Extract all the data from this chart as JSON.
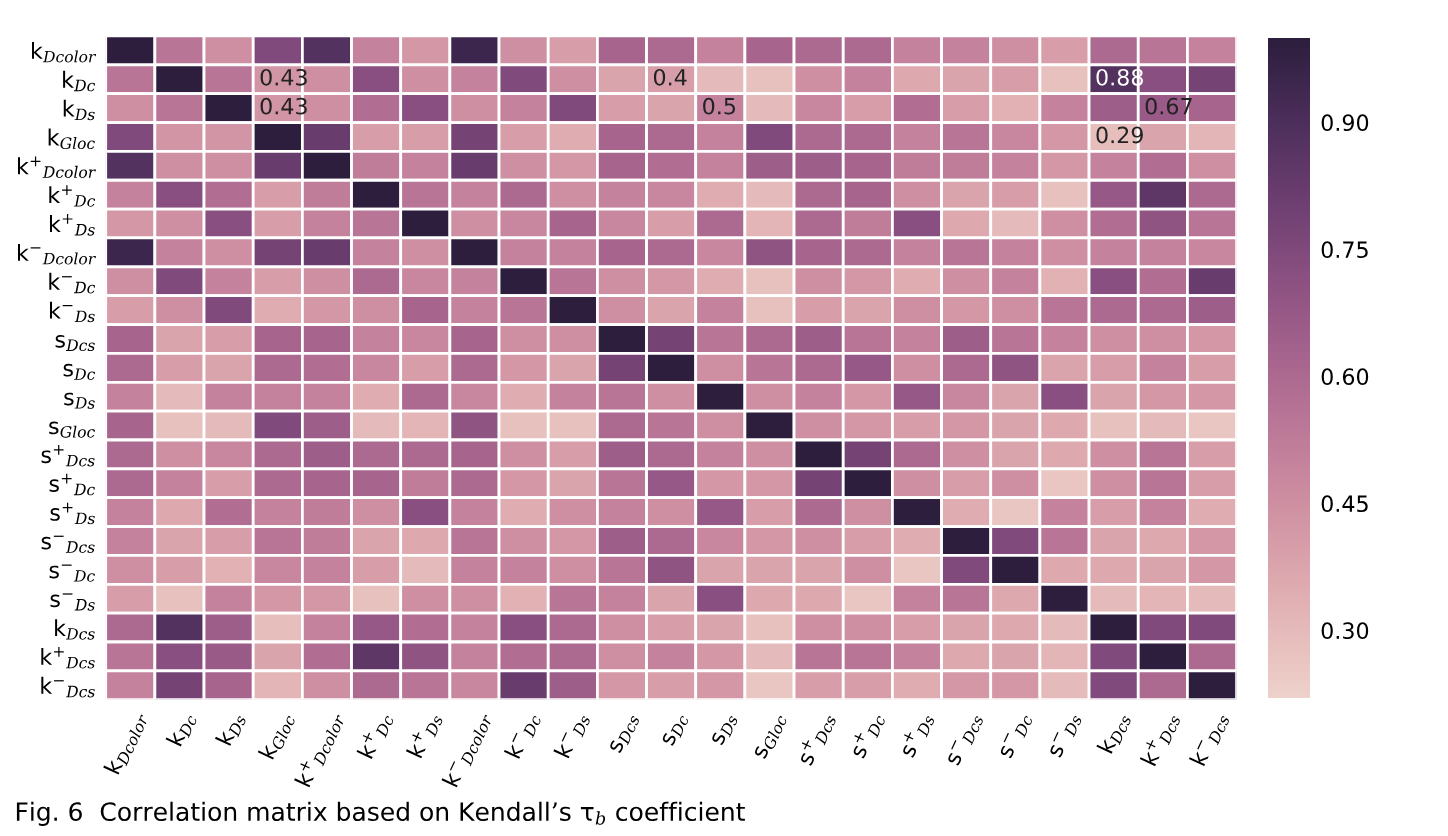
{
  "chart_data": {
    "type": "heatmap",
    "categories": [
      "k$_{Dcolor}$",
      "k$_{Dc}$",
      "k$_{Ds}$",
      "k$_{Gloc}$",
      "k$^{+}$$_{Dcolor}$",
      "k$^{+}$$_{Dc}$",
      "k$^{+}$$_{Ds}$",
      "k$^{−}$$_{Dcolor}$",
      "k$^{−}$$_{Dc}$",
      "k$^{−}$$_{Ds}$",
      "s$_{Dcs}$",
      "s$_{Dc}$",
      "s$_{Ds}$",
      "s$_{Gloc}$",
      "s$^{+}$$_{Dcs}$",
      "s$^{+}$$_{Dc}$",
      "s$^{+}$$_{Ds}$",
      "s$^{−}$$_{Dcs}$",
      "s$^{−}$$_{Dc}$",
      "s$^{−}$$_{Ds}$",
      "k$_{Dcs}$",
      "k$^{+}$$_{Dcs}$",
      "k$^{−}$$_{Dcs}$"
    ],
    "y_categories": [
      "k$_{Dcolor}$",
      "k$_{Dc}$",
      "k$_{Ds}$",
      "k$_{Gloc}$",
      "k$^{+}$$_{Dcolor}$",
      "k$^{+}$$_{Dc}$",
      "k$^{+}$$_{Ds}$",
      "k$^{−}$$_{Dcolor}$",
      "k$^{−}$$_{Dc}$",
      "k$^{−}$$_{Ds}$",
      "s$_{Dcs}$",
      "s$_{Dc}$",
      "s$_{Ds}$",
      "s$_{Gloc}$",
      "s$^{+}$$_{Dcs}$",
      "s$^{+}$$_{Dc}$",
      "s$^{+}$$_{Ds}$",
      "s$^{−}$$_{Dcs}$",
      "s$^{−}$$_{Dc}$",
      "s$^{−}$$_{Ds}$",
      "k$_{Dcs}$",
      "k$^{+}$$_{Dcs}$",
      "k$^{−}$$_{Dcs}$"
    ],
    "cells": [
      [
        1.0,
        0.55,
        0.45,
        0.75,
        0.88,
        0.5,
        0.42,
        0.95,
        0.45,
        0.4,
        0.62,
        0.6,
        0.5,
        0.62,
        0.6,
        0.6,
        0.5,
        0.5,
        0.45,
        0.4,
        0.6,
        0.55,
        0.5
      ],
      [
        0.55,
        1.0,
        0.55,
        0.43,
        0.45,
        0.72,
        0.45,
        0.5,
        0.75,
        0.45,
        0.38,
        0.4,
        0.3,
        0.28,
        0.45,
        0.5,
        0.36,
        0.38,
        0.4,
        0.28,
        0.88,
        0.72,
        0.78
      ],
      [
        0.45,
        0.55,
        1.0,
        0.43,
        0.45,
        0.58,
        0.72,
        0.45,
        0.5,
        0.75,
        0.4,
        0.38,
        0.5,
        0.3,
        0.48,
        0.4,
        0.58,
        0.4,
        0.33,
        0.5,
        0.65,
        0.67,
        0.62
      ],
      [
        0.75,
        0.43,
        0.43,
        1.0,
        0.82,
        0.4,
        0.4,
        0.78,
        0.4,
        0.35,
        0.62,
        0.6,
        0.5,
        0.75,
        0.6,
        0.6,
        0.5,
        0.55,
        0.48,
        0.42,
        0.29,
        0.38,
        0.32
      ],
      [
        0.88,
        0.45,
        0.45,
        0.82,
        1.0,
        0.52,
        0.5,
        0.82,
        0.45,
        0.42,
        0.62,
        0.58,
        0.5,
        0.65,
        0.65,
        0.62,
        0.52,
        0.52,
        0.5,
        0.42,
        0.5,
        0.58,
        0.45
      ],
      [
        0.5,
        0.72,
        0.58,
        0.4,
        0.52,
        1.0,
        0.55,
        0.5,
        0.6,
        0.45,
        0.5,
        0.48,
        0.35,
        0.3,
        0.6,
        0.62,
        0.45,
        0.38,
        0.4,
        0.28,
        0.68,
        0.85,
        0.6
      ],
      [
        0.42,
        0.45,
        0.72,
        0.4,
        0.5,
        0.55,
        1.0,
        0.45,
        0.48,
        0.62,
        0.48,
        0.4,
        0.6,
        0.32,
        0.6,
        0.52,
        0.72,
        0.36,
        0.3,
        0.45,
        0.58,
        0.7,
        0.55
      ],
      [
        0.95,
        0.5,
        0.45,
        0.78,
        0.82,
        0.5,
        0.45,
        1.0,
        0.5,
        0.5,
        0.62,
        0.6,
        0.48,
        0.7,
        0.62,
        0.6,
        0.5,
        0.55,
        0.5,
        0.45,
        0.5,
        0.5,
        0.48
      ],
      [
        0.45,
        0.75,
        0.5,
        0.4,
        0.45,
        0.6,
        0.48,
        0.5,
        1.0,
        0.55,
        0.45,
        0.42,
        0.35,
        0.28,
        0.45,
        0.42,
        0.35,
        0.45,
        0.5,
        0.33,
        0.72,
        0.58,
        0.82
      ],
      [
        0.4,
        0.45,
        0.75,
        0.35,
        0.42,
        0.45,
        0.62,
        0.5,
        0.55,
        1.0,
        0.45,
        0.38,
        0.5,
        0.28,
        0.4,
        0.38,
        0.45,
        0.42,
        0.45,
        0.55,
        0.6,
        0.6,
        0.65
      ],
      [
        0.62,
        0.38,
        0.4,
        0.62,
        0.62,
        0.5,
        0.48,
        0.62,
        0.45,
        0.45,
        1.0,
        0.78,
        0.55,
        0.6,
        0.65,
        0.55,
        0.5,
        0.65,
        0.55,
        0.5,
        0.45,
        0.45,
        0.42
      ],
      [
        0.6,
        0.4,
        0.38,
        0.6,
        0.58,
        0.48,
        0.4,
        0.6,
        0.42,
        0.38,
        0.78,
        1.0,
        0.45,
        0.55,
        0.6,
        0.68,
        0.45,
        0.6,
        0.7,
        0.38,
        0.4,
        0.5,
        0.4
      ],
      [
        0.5,
        0.3,
        0.5,
        0.5,
        0.5,
        0.35,
        0.6,
        0.48,
        0.35,
        0.5,
        0.55,
        0.45,
        1.0,
        0.45,
        0.5,
        0.42,
        0.68,
        0.48,
        0.38,
        0.72,
        0.38,
        0.42,
        0.42
      ],
      [
        0.62,
        0.28,
        0.3,
        0.75,
        0.65,
        0.3,
        0.32,
        0.7,
        0.28,
        0.28,
        0.6,
        0.55,
        0.45,
        1.0,
        0.45,
        0.42,
        0.4,
        0.42,
        0.38,
        0.36,
        0.28,
        0.3,
        0.26
      ],
      [
        0.6,
        0.45,
        0.48,
        0.6,
        0.65,
        0.6,
        0.6,
        0.62,
        0.45,
        0.4,
        0.65,
        0.6,
        0.5,
        0.45,
        1.0,
        0.78,
        0.6,
        0.45,
        0.38,
        0.36,
        0.45,
        0.55,
        0.4
      ],
      [
        0.6,
        0.5,
        0.4,
        0.6,
        0.62,
        0.62,
        0.52,
        0.6,
        0.42,
        0.38,
        0.55,
        0.68,
        0.42,
        0.42,
        0.78,
        1.0,
        0.45,
        0.4,
        0.45,
        0.26,
        0.45,
        0.55,
        0.4
      ],
      [
        0.5,
        0.36,
        0.58,
        0.5,
        0.52,
        0.45,
        0.72,
        0.5,
        0.35,
        0.45,
        0.5,
        0.45,
        0.68,
        0.4,
        0.6,
        0.45,
        1.0,
        0.35,
        0.26,
        0.5,
        0.4,
        0.5,
        0.35
      ],
      [
        0.5,
        0.38,
        0.4,
        0.55,
        0.52,
        0.38,
        0.36,
        0.55,
        0.45,
        0.42,
        0.65,
        0.6,
        0.48,
        0.42,
        0.45,
        0.4,
        0.35,
        1.0,
        0.75,
        0.55,
        0.38,
        0.36,
        0.42
      ],
      [
        0.45,
        0.4,
        0.33,
        0.48,
        0.5,
        0.4,
        0.3,
        0.5,
        0.5,
        0.45,
        0.55,
        0.7,
        0.38,
        0.38,
        0.38,
        0.45,
        0.26,
        0.75,
        1.0,
        0.36,
        0.36,
        0.38,
        0.42
      ],
      [
        0.4,
        0.28,
        0.5,
        0.42,
        0.42,
        0.28,
        0.45,
        0.45,
        0.33,
        0.55,
        0.5,
        0.38,
        0.72,
        0.36,
        0.36,
        0.26,
        0.5,
        0.55,
        0.36,
        1.0,
        0.3,
        0.32,
        0.3
      ],
      [
        0.6,
        0.88,
        0.65,
        0.29,
        0.5,
        0.68,
        0.58,
        0.5,
        0.72,
        0.6,
        0.45,
        0.4,
        0.38,
        0.28,
        0.45,
        0.45,
        0.4,
        0.38,
        0.36,
        0.3,
        1.0,
        0.75,
        0.75
      ],
      [
        0.55,
        0.72,
        0.67,
        0.38,
        0.58,
        0.85,
        0.7,
        0.5,
        0.58,
        0.6,
        0.45,
        0.5,
        0.42,
        0.3,
        0.55,
        0.55,
        0.5,
        0.36,
        0.38,
        0.32,
        0.75,
        1.0,
        0.6
      ],
      [
        0.5,
        0.78,
        0.62,
        0.32,
        0.45,
        0.6,
        0.55,
        0.48,
        0.82,
        0.65,
        0.42,
        0.4,
        0.42,
        0.26,
        0.4,
        0.4,
        0.35,
        0.42,
        0.42,
        0.3,
        0.75,
        0.6,
        1.0
      ]
    ],
    "cell_labels": [
      [
        null,
        null,
        null,
        null,
        null,
        null,
        null,
        null,
        null,
        null,
        null,
        null,
        null,
        null,
        null,
        null,
        null,
        null,
        null,
        null,
        null,
        null,
        null
      ],
      [
        null,
        null,
        null,
        "0.43",
        null,
        null,
        null,
        null,
        null,
        null,
        null,
        "0.4",
        null,
        null,
        null,
        null,
        null,
        null,
        null,
        null,
        "0.88",
        null,
        null
      ],
      [
        null,
        null,
        null,
        "0.43",
        null,
        null,
        null,
        null,
        null,
        null,
        null,
        null,
        "0.5",
        null,
        null,
        null,
        null,
        null,
        null,
        null,
        null,
        "0.67",
        null
      ],
      [
        null,
        null,
        null,
        null,
        null,
        null,
        null,
        null,
        null,
        null,
        null,
        null,
        null,
        null,
        null,
        null,
        null,
        null,
        null,
        null,
        "0.29",
        null,
        null
      ],
      [
        null,
        null,
        null,
        null,
        null,
        null,
        null,
        null,
        null,
        null,
        null,
        null,
        null,
        null,
        null,
        null,
        null,
        null,
        null,
        null,
        null,
        null,
        null
      ],
      [
        null,
        null,
        null,
        null,
        null,
        null,
        null,
        null,
        null,
        null,
        null,
        null,
        null,
        null,
        null,
        null,
        null,
        null,
        null,
        null,
        null,
        null,
        null
      ],
      [
        null,
        null,
        null,
        null,
        null,
        null,
        null,
        null,
        null,
        null,
        null,
        null,
        null,
        null,
        null,
        null,
        null,
        null,
        null,
        null,
        null,
        null,
        null
      ],
      [
        null,
        null,
        null,
        null,
        null,
        null,
        null,
        null,
        null,
        null,
        null,
        null,
        null,
        null,
        null,
        null,
        null,
        null,
        null,
        null,
        null,
        null,
        null
      ],
      [
        null,
        null,
        null,
        null,
        null,
        null,
        null,
        null,
        null,
        null,
        null,
        null,
        null,
        null,
        null,
        null,
        null,
        null,
        null,
        null,
        null,
        null,
        null
      ],
      [
        null,
        null,
        null,
        null,
        null,
        null,
        null,
        null,
        null,
        null,
        null,
        null,
        null,
        null,
        null,
        null,
        null,
        null,
        null,
        null,
        null,
        null,
        null
      ],
      [
        null,
        null,
        null,
        null,
        null,
        null,
        null,
        null,
        null,
        null,
        null,
        null,
        null,
        null,
        null,
        null,
        null,
        null,
        null,
        null,
        null,
        null,
        null
      ],
      [
        null,
        null,
        null,
        null,
        null,
        null,
        null,
        null,
        null,
        null,
        null,
        null,
        null,
        null,
        null,
        null,
        null,
        null,
        null,
        null,
        null,
        null,
        null
      ],
      [
        null,
        null,
        null,
        null,
        null,
        null,
        null,
        null,
        null,
        null,
        null,
        null,
        null,
        null,
        null,
        null,
        null,
        null,
        null,
        null,
        null,
        null,
        null
      ],
      [
        null,
        null,
        null,
        null,
        null,
        null,
        null,
        null,
        null,
        null,
        null,
        null,
        null,
        null,
        null,
        null,
        null,
        null,
        null,
        null,
        null,
        null,
        null
      ],
      [
        null,
        null,
        null,
        null,
        null,
        null,
        null,
        null,
        null,
        null,
        null,
        null,
        null,
        null,
        null,
        null,
        null,
        null,
        null,
        null,
        null,
        null,
        null
      ],
      [
        null,
        null,
        null,
        null,
        null,
        null,
        null,
        null,
        null,
        null,
        null,
        null,
        null,
        null,
        null,
        null,
        null,
        null,
        null,
        null,
        null,
        null,
        null
      ],
      [
        null,
        null,
        null,
        null,
        null,
        null,
        null,
        null,
        null,
        null,
        null,
        null,
        null,
        null,
        null,
        null,
        null,
        null,
        null,
        null,
        null,
        null,
        null
      ],
      [
        null,
        null,
        null,
        null,
        null,
        null,
        null,
        null,
        null,
        null,
        null,
        null,
        null,
        null,
        null,
        null,
        null,
        null,
        null,
        null,
        null,
        null,
        null
      ],
      [
        null,
        null,
        null,
        null,
        null,
        null,
        null,
        null,
        null,
        null,
        null,
        null,
        null,
        null,
        null,
        null,
        null,
        null,
        null,
        null,
        null,
        null,
        null
      ],
      [
        null,
        null,
        null,
        null,
        null,
        null,
        null,
        null,
        null,
        null,
        null,
        null,
        null,
        null,
        null,
        null,
        null,
        null,
        null,
        null,
        null,
        null,
        null
      ],
      [
        null,
        null,
        null,
        null,
        null,
        null,
        null,
        null,
        null,
        null,
        null,
        null,
        null,
        null,
        null,
        null,
        null,
        null,
        null,
        null,
        null,
        null,
        null
      ],
      [
        null,
        null,
        null,
        null,
        null,
        null,
        null,
        null,
        null,
        null,
        null,
        null,
        null,
        null,
        null,
        null,
        null,
        null,
        null,
        null,
        null,
        null,
        null
      ],
      [
        null,
        null,
        null,
        null,
        null,
        null,
        null,
        null,
        null,
        null,
        null,
        null,
        null,
        null,
        null,
        null,
        null,
        null,
        null,
        null,
        null,
        null,
        null
      ]
    ],
    "clim": [
      0.22,
      1.0
    ],
    "cticks": [
      {
        "value": 0.3,
        "label": "0.30"
      },
      0.45,
      {
        "value": 0.6,
        "label": "0.60"
      },
      0.75,
      {
        "value": 0.9,
        "label": "0.90"
      }
    ],
    "annotations": [
      "Fig. 6  Correlation matrix based on Kendall’s τ$_{b}$ coefficient"
    ]
  }
}
